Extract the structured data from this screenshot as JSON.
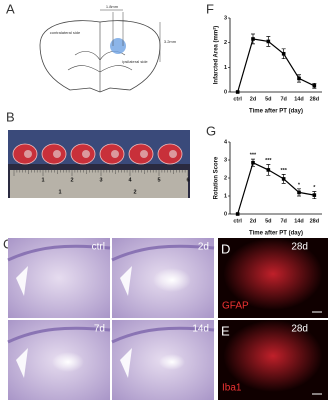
{
  "panels": {
    "a": {
      "label": "A",
      "contralateral": "contralateral side",
      "ipsilateral": "ipsilateral side",
      "width": "1.8mm",
      "depth": "3.2mm"
    },
    "b": {
      "label": "B",
      "ruler_top": [
        "1",
        "2",
        "3",
        "4",
        "5",
        "6"
      ],
      "ruler_bottom": [
        "1",
        "2"
      ]
    },
    "c": {
      "label": "C",
      "tiles": [
        "ctrl",
        "2d",
        "7d",
        "14d"
      ]
    },
    "d": {
      "label": "D",
      "day": "28d",
      "stain": "GFAP"
    },
    "e": {
      "label": "E",
      "day": "28d",
      "stain": "Iba1"
    },
    "f": {
      "label": "F"
    },
    "g": {
      "label": "G"
    }
  },
  "chart_data": [
    {
      "type": "line",
      "y_label": "Infarcted Area (mm²)",
      "x_label": "Time after PT (day)",
      "categories": [
        "ctrl",
        "2d",
        "5d",
        "7d",
        "14d",
        "28d"
      ],
      "values": [
        0,
        2.15,
        2.05,
        1.55,
        0.55,
        0.25
      ],
      "errors": [
        0,
        0.2,
        0.2,
        0.2,
        0.15,
        0.1
      ],
      "color": "#000000",
      "ylim": [
        0,
        3
      ],
      "yticks": [
        0,
        1,
        2,
        3
      ]
    },
    {
      "type": "line",
      "y_label": "Rotation Score",
      "x_label": "Time after PT (day)",
      "categories": [
        "ctrl",
        "2d",
        "5d",
        "7d",
        "14d",
        "28d"
      ],
      "values": [
        0,
        2.85,
        2.45,
        1.95,
        1.2,
        1.05
      ],
      "errors": [
        0,
        0.2,
        0.3,
        0.25,
        0.2,
        0.2
      ],
      "annotations": [
        null,
        "***",
        "***",
        "***",
        "*",
        "*"
      ],
      "color": "#000000",
      "ylim": [
        0,
        4
      ],
      "yticks": [
        0,
        1,
        2,
        3,
        4
      ]
    }
  ]
}
